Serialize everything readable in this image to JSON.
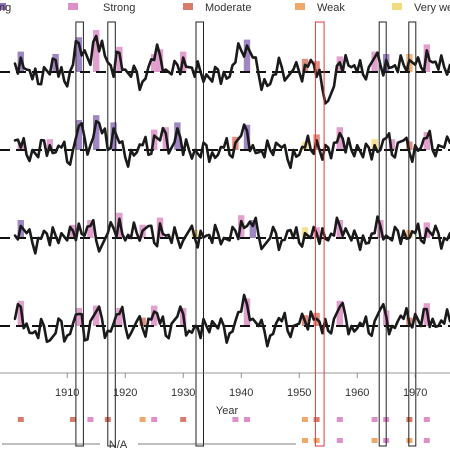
{
  "chart_data": {
    "type": "line",
    "xlabel": "Year",
    "xlim": [
      1901,
      1976
    ],
    "x_ticks": [
      1910,
      1920,
      1930,
      1940,
      1950,
      1960,
      1970
    ],
    "legend": [
      {
        "label": "ng",
        "color": "#8e72b8"
      },
      {
        "label": "Strong",
        "color": "#dd8fc7"
      },
      {
        "label": "Moderate",
        "color": "#d97a6a"
      },
      {
        "label": "Weak",
        "color": "#f0a86a"
      },
      {
        "label": "Very we",
        "color": "#f2dc82"
      }
    ],
    "annotation_na": "N/A",
    "highlight_windows": [
      {
        "start": 1911.5,
        "end": 1912.8,
        "color": "#222222"
      },
      {
        "start": 1917.0,
        "end": 1918.3,
        "color": "#222222"
      },
      {
        "start": 1932.2,
        "end": 1933.5,
        "color": "#222222"
      },
      {
        "start": 1952.8,
        "end": 1954.3,
        "color": "#e03a3a"
      },
      {
        "start": 1963.8,
        "end": 1965.0,
        "color": "#222222"
      },
      {
        "start": 1968.9,
        "end": 1970.1,
        "color": "#222222"
      }
    ],
    "panels": [
      {
        "events": [
          {
            "year": 1902,
            "color": "#8e72b8"
          },
          {
            "year": 1908,
            "color": "#8e72b8"
          },
          {
            "year": 1912,
            "color": "#8e72b8"
          },
          {
            "year": 1915,
            "color": "#dd8fc7"
          },
          {
            "year": 1919,
            "color": "#dd8fc7"
          },
          {
            "year": 1925,
            "color": "#dd8fc7"
          },
          {
            "year": 1926,
            "color": "#dd8fc7"
          },
          {
            "year": 1930,
            "color": "#dd8fc7"
          },
          {
            "year": 1941,
            "color": "#8e72b8"
          },
          {
            "year": 1951,
            "color": "#d97a6a"
          },
          {
            "year": 1953,
            "color": "#d97a6a"
          },
          {
            "year": 1957,
            "color": "#dd8fc7"
          },
          {
            "year": 1963,
            "color": "#dd8fc7"
          },
          {
            "year": 1965,
            "color": "#8e72b8"
          },
          {
            "year": 1969,
            "color": "#f0a86a"
          },
          {
            "year": 1972,
            "color": "#dd8fc7"
          }
        ],
        "anom": [
          0.35,
          0.6,
          0.1,
          -0.3,
          -0.5,
          0.2,
          -0.1,
          0.5,
          0.2,
          -0.6,
          0.3,
          1.2,
          0.9,
          0.3,
          1.5,
          1.3,
          0.4,
          -0.2,
          0.8,
          0.1,
          -0.2,
          0.0,
          -0.4,
          0.2,
          0.5,
          0.7,
          0.1,
          -0.1,
          0.3,
          0.6,
          0.2,
          -0.2,
          0.0,
          -0.1,
          -0.4,
          0.1,
          0.0,
          -0.2,
          0.4,
          0.9,
          1.1,
          0.6,
          -0.1,
          -0.3,
          -0.5,
          -0.1,
          0.2,
          -0.2,
          0.1,
          0.0,
          0.3,
          0.5,
          -0.2,
          -0.7,
          -1.2,
          -0.6,
          0.4,
          0.7,
          0.2,
          0.0,
          -0.1,
          0.2,
          0.6,
          0.3,
          0.5,
          0.2,
          0.0,
          0.3,
          0.5,
          0.3,
          0.2,
          0.9,
          0.4,
          0.1,
          0.2,
          0.3
        ]
      },
      {
        "events": [
          {
            "year": 1902,
            "color": "#dd8fc7"
          },
          {
            "year": 1907,
            "color": "#dd8fc7"
          },
          {
            "year": 1912,
            "color": "#8e72b8"
          },
          {
            "year": 1915,
            "color": "#8e72b8"
          },
          {
            "year": 1918,
            "color": "#8e72b8"
          },
          {
            "year": 1925,
            "color": "#dd8fc7"
          },
          {
            "year": 1927,
            "color": "#dd8fc7"
          },
          {
            "year": 1929,
            "color": "#8e72b8"
          },
          {
            "year": 1939,
            "color": "#d97a6a"
          },
          {
            "year": 1941,
            "color": "#8e72b8"
          },
          {
            "year": 1951,
            "color": "#f2dc82"
          },
          {
            "year": 1953,
            "color": "#d97a6a"
          },
          {
            "year": 1957,
            "color": "#dd8fc7"
          },
          {
            "year": 1963,
            "color": "#f2dc82"
          },
          {
            "year": 1966,
            "color": "#dd8fc7"
          },
          {
            "year": 1969,
            "color": "#d97a6a"
          },
          {
            "year": 1972,
            "color": "#dd8fc7"
          }
        ],
        "anom": [
          0.4,
          0.1,
          -0.2,
          0.0,
          -0.3,
          0.4,
          0.2,
          -0.1,
          0.1,
          -0.5,
          0.0,
          1.0,
          0.5,
          0.2,
          1.2,
          0.7,
          0.0,
          0.9,
          0.3,
          -0.3,
          0.0,
          -0.1,
          0.2,
          -0.2,
          0.6,
          0.4,
          0.7,
          0.1,
          0.9,
          -0.2,
          0.0,
          0.0,
          -0.3,
          0.2,
          -0.1,
          -0.2,
          0.1,
          -0.2,
          0.3,
          0.6,
          0.8,
          0.2,
          -0.1,
          -0.3,
          0.0,
          0.3,
          0.1,
          -0.4,
          0.0,
          -0.2,
          0.1,
          0.0,
          0.4,
          -0.4,
          0.1,
          0.3,
          0.7,
          -0.1,
          0.0,
          0.2,
          -0.3,
          0.1,
          0.2,
          0.0,
          0.5,
          -0.2,
          0.3,
          0.4,
          -0.1,
          0.2,
          0.1,
          0.5,
          0.0,
          0.2,
          0.1,
          0.3
        ]
      },
      {
        "events": [
          {
            "year": 1902,
            "color": "#8e72b8"
          },
          {
            "year": 1911,
            "color": "#dd8fc7"
          },
          {
            "year": 1914,
            "color": "#dd8fc7"
          },
          {
            "year": 1919,
            "color": "#dd8fc7"
          },
          {
            "year": 1923,
            "color": "#dd8fc7"
          },
          {
            "year": 1926,
            "color": "#dd8fc7"
          },
          {
            "year": 1932,
            "color": "#f2dc82"
          },
          {
            "year": 1940,
            "color": "#dd8fc7"
          },
          {
            "year": 1942,
            "color": "#8e72b8"
          },
          {
            "year": 1951,
            "color": "#f2dc82"
          },
          {
            "year": 1953,
            "color": "#dd8fc7"
          },
          {
            "year": 1957,
            "color": "#dd8fc7"
          },
          {
            "year": 1964,
            "color": "#dd8fc7"
          },
          {
            "year": 1969,
            "color": "#f0a86a"
          },
          {
            "year": 1972,
            "color": "#dd8fc7"
          }
        ],
        "anom": [
          0.1,
          0.5,
          0.2,
          -0.2,
          0.0,
          0.3,
          -0.3,
          0.1,
          0.2,
          -0.1,
          0.3,
          0.6,
          0.1,
          0.5,
          -0.1,
          -0.3,
          0.2,
          0.4,
          0.8,
          -0.1,
          0.0,
          0.2,
          0.3,
          0.5,
          -0.2,
          0.6,
          0.1,
          -0.2,
          0.0,
          -0.1,
          0.3,
          0.0,
          0.3,
          0.1,
          -0.2,
          0.2,
          0.0,
          -0.1,
          0.3,
          0.7,
          0.5,
          0.5,
          0.1,
          -0.3,
          0.0,
          0.2,
          -0.1,
          0.3,
          0.0,
          -0.2,
          0.2,
          0.0,
          0.2,
          0.4,
          -0.1,
          0.1,
          0.5,
          0.4,
          -0.1,
          0.0,
          0.1,
          -0.2,
          0.2,
          0.5,
          0.1,
          -0.1,
          0.3,
          0.3,
          0.0,
          0.2,
          -0.1,
          0.4,
          0.1,
          0.2,
          0.0,
          0.2
        ]
      },
      {
        "events": [
          {
            "year": 1902,
            "color": "#dd8fc7"
          },
          {
            "year": 1912,
            "color": "#dd8fc7"
          },
          {
            "year": 1915,
            "color": "#dd8fc7"
          },
          {
            "year": 1919,
            "color": "#dd8fc7"
          },
          {
            "year": 1923,
            "color": "#d97a6a"
          },
          {
            "year": 1925,
            "color": "#dd8fc7"
          },
          {
            "year": 1930,
            "color": "#dd8fc7"
          },
          {
            "year": 1941,
            "color": "#dd8fc7"
          },
          {
            "year": 1951,
            "color": "#d97a6a"
          },
          {
            "year": 1953,
            "color": "#d97a6a"
          },
          {
            "year": 1957,
            "color": "#dd8fc7"
          },
          {
            "year": 1965,
            "color": "#dd8fc7"
          },
          {
            "year": 1969,
            "color": "#d97a6a"
          },
          {
            "year": 1972,
            "color": "#dd8fc7"
          }
        ],
        "anom": [
          0.3,
          0.8,
          0.1,
          -0.3,
          -0.5,
          0.0,
          -0.6,
          -0.3,
          0.2,
          -0.4,
          0.1,
          0.5,
          -0.6,
          0.2,
          0.6,
          0.3,
          -0.2,
          0.1,
          0.5,
          0.0,
          -0.3,
          0.2,
          -0.1,
          0.3,
          0.6,
          0.1,
          -0.4,
          0.1,
          0.4,
          0.5,
          -0.2,
          0.0,
          -0.5,
          0.0,
          0.2,
          -0.1,
          0.0,
          -0.3,
          0.2,
          0.6,
          0.9,
          0.3,
          0.0,
          -0.2,
          -0.4,
          0.1,
          0.2,
          -0.2,
          0.0,
          0.1,
          0.2,
          0.6,
          0.3,
          -0.3,
          -0.2,
          0.3,
          0.8,
          0.4,
          0.0,
          -0.1,
          0.0,
          -0.3,
          0.2,
          0.7,
          0.4,
          0.0,
          0.2,
          0.3,
          0.1,
          0.5,
          0.0,
          0.7,
          0.3,
          0.0,
          0.1,
          0.2
        ]
      }
    ],
    "strip_rows": [
      {
        "markers": [
          {
            "year": 1902,
            "color": "#d97a6a"
          },
          {
            "year": 1911,
            "color": "#d97a6a"
          },
          {
            "year": 1914,
            "color": "#dd8fc7"
          },
          {
            "year": 1917,
            "color": "#d97a6a"
          },
          {
            "year": 1923,
            "color": "#f0a86a"
          },
          {
            "year": 1925,
            "color": "#dd8fc7"
          },
          {
            "year": 1930,
            "color": "#d97a6a"
          },
          {
            "year": 1939,
            "color": "#dd8fc7"
          },
          {
            "year": 1941,
            "color": "#dd8fc7"
          },
          {
            "year": 1951,
            "color": "#f0a86a"
          },
          {
            "year": 1953,
            "color": "#d97a6a"
          },
          {
            "year": 1957,
            "color": "#dd8fc7"
          },
          {
            "year": 1963,
            "color": "#dd8fc7"
          },
          {
            "year": 1965,
            "color": "#dd8fc7"
          },
          {
            "year": 1969,
            "color": "#d97a6a"
          },
          {
            "year": 1972,
            "color": "#dd8fc7"
          }
        ]
      },
      {
        "markers": [
          {
            "year": 1951,
            "color": "#f0a86a"
          },
          {
            "year": 1953,
            "color": "#f0a86a"
          },
          {
            "year": 1957,
            "color": "#dd8fc7"
          },
          {
            "year": 1963,
            "color": "#f0a86a"
          },
          {
            "year": 1965,
            "color": "#dd8fc7"
          },
          {
            "year": 1969,
            "color": "#f0a86a"
          },
          {
            "year": 1972,
            "color": "#dd8fc7"
          }
        ]
      }
    ]
  }
}
